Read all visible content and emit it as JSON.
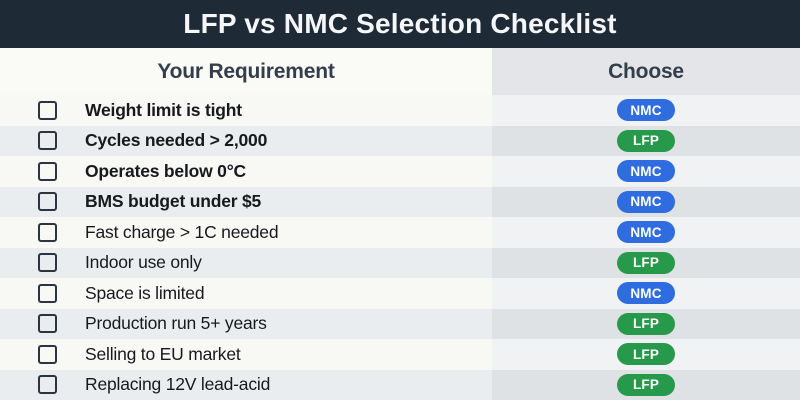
{
  "title": "LFP vs NMC Selection Checklist",
  "columns": {
    "requirement": "Your Requirement",
    "choose": "Choose"
  },
  "colors": {
    "title_bar": "#1f2a37",
    "nmc_badge": "#2e6cdf",
    "lfp_badge": "#269a4a"
  },
  "rows": [
    {
      "requirement": "Weight limit is tight",
      "choice": "NMC",
      "bold": true
    },
    {
      "requirement": "Cycles needed > 2,000",
      "choice": "LFP",
      "bold": true
    },
    {
      "requirement": "Operates below 0°C",
      "choice": "NMC",
      "bold": true
    },
    {
      "requirement": "BMS budget under $5",
      "choice": "NMC",
      "bold": true
    },
    {
      "requirement": "Fast charge > 1C needed",
      "choice": "NMC",
      "bold": false
    },
    {
      "requirement": "Indoor use only",
      "choice": "LFP",
      "bold": false
    },
    {
      "requirement": "Space is limited",
      "choice": "NMC",
      "bold": false
    },
    {
      "requirement": "Production run 5+ years",
      "choice": "LFP",
      "bold": false
    },
    {
      "requirement": "Selling to EU market",
      "choice": "LFP",
      "bold": false
    },
    {
      "requirement": "Replacing 12V lead-acid",
      "choice": "LFP",
      "bold": false
    }
  ]
}
